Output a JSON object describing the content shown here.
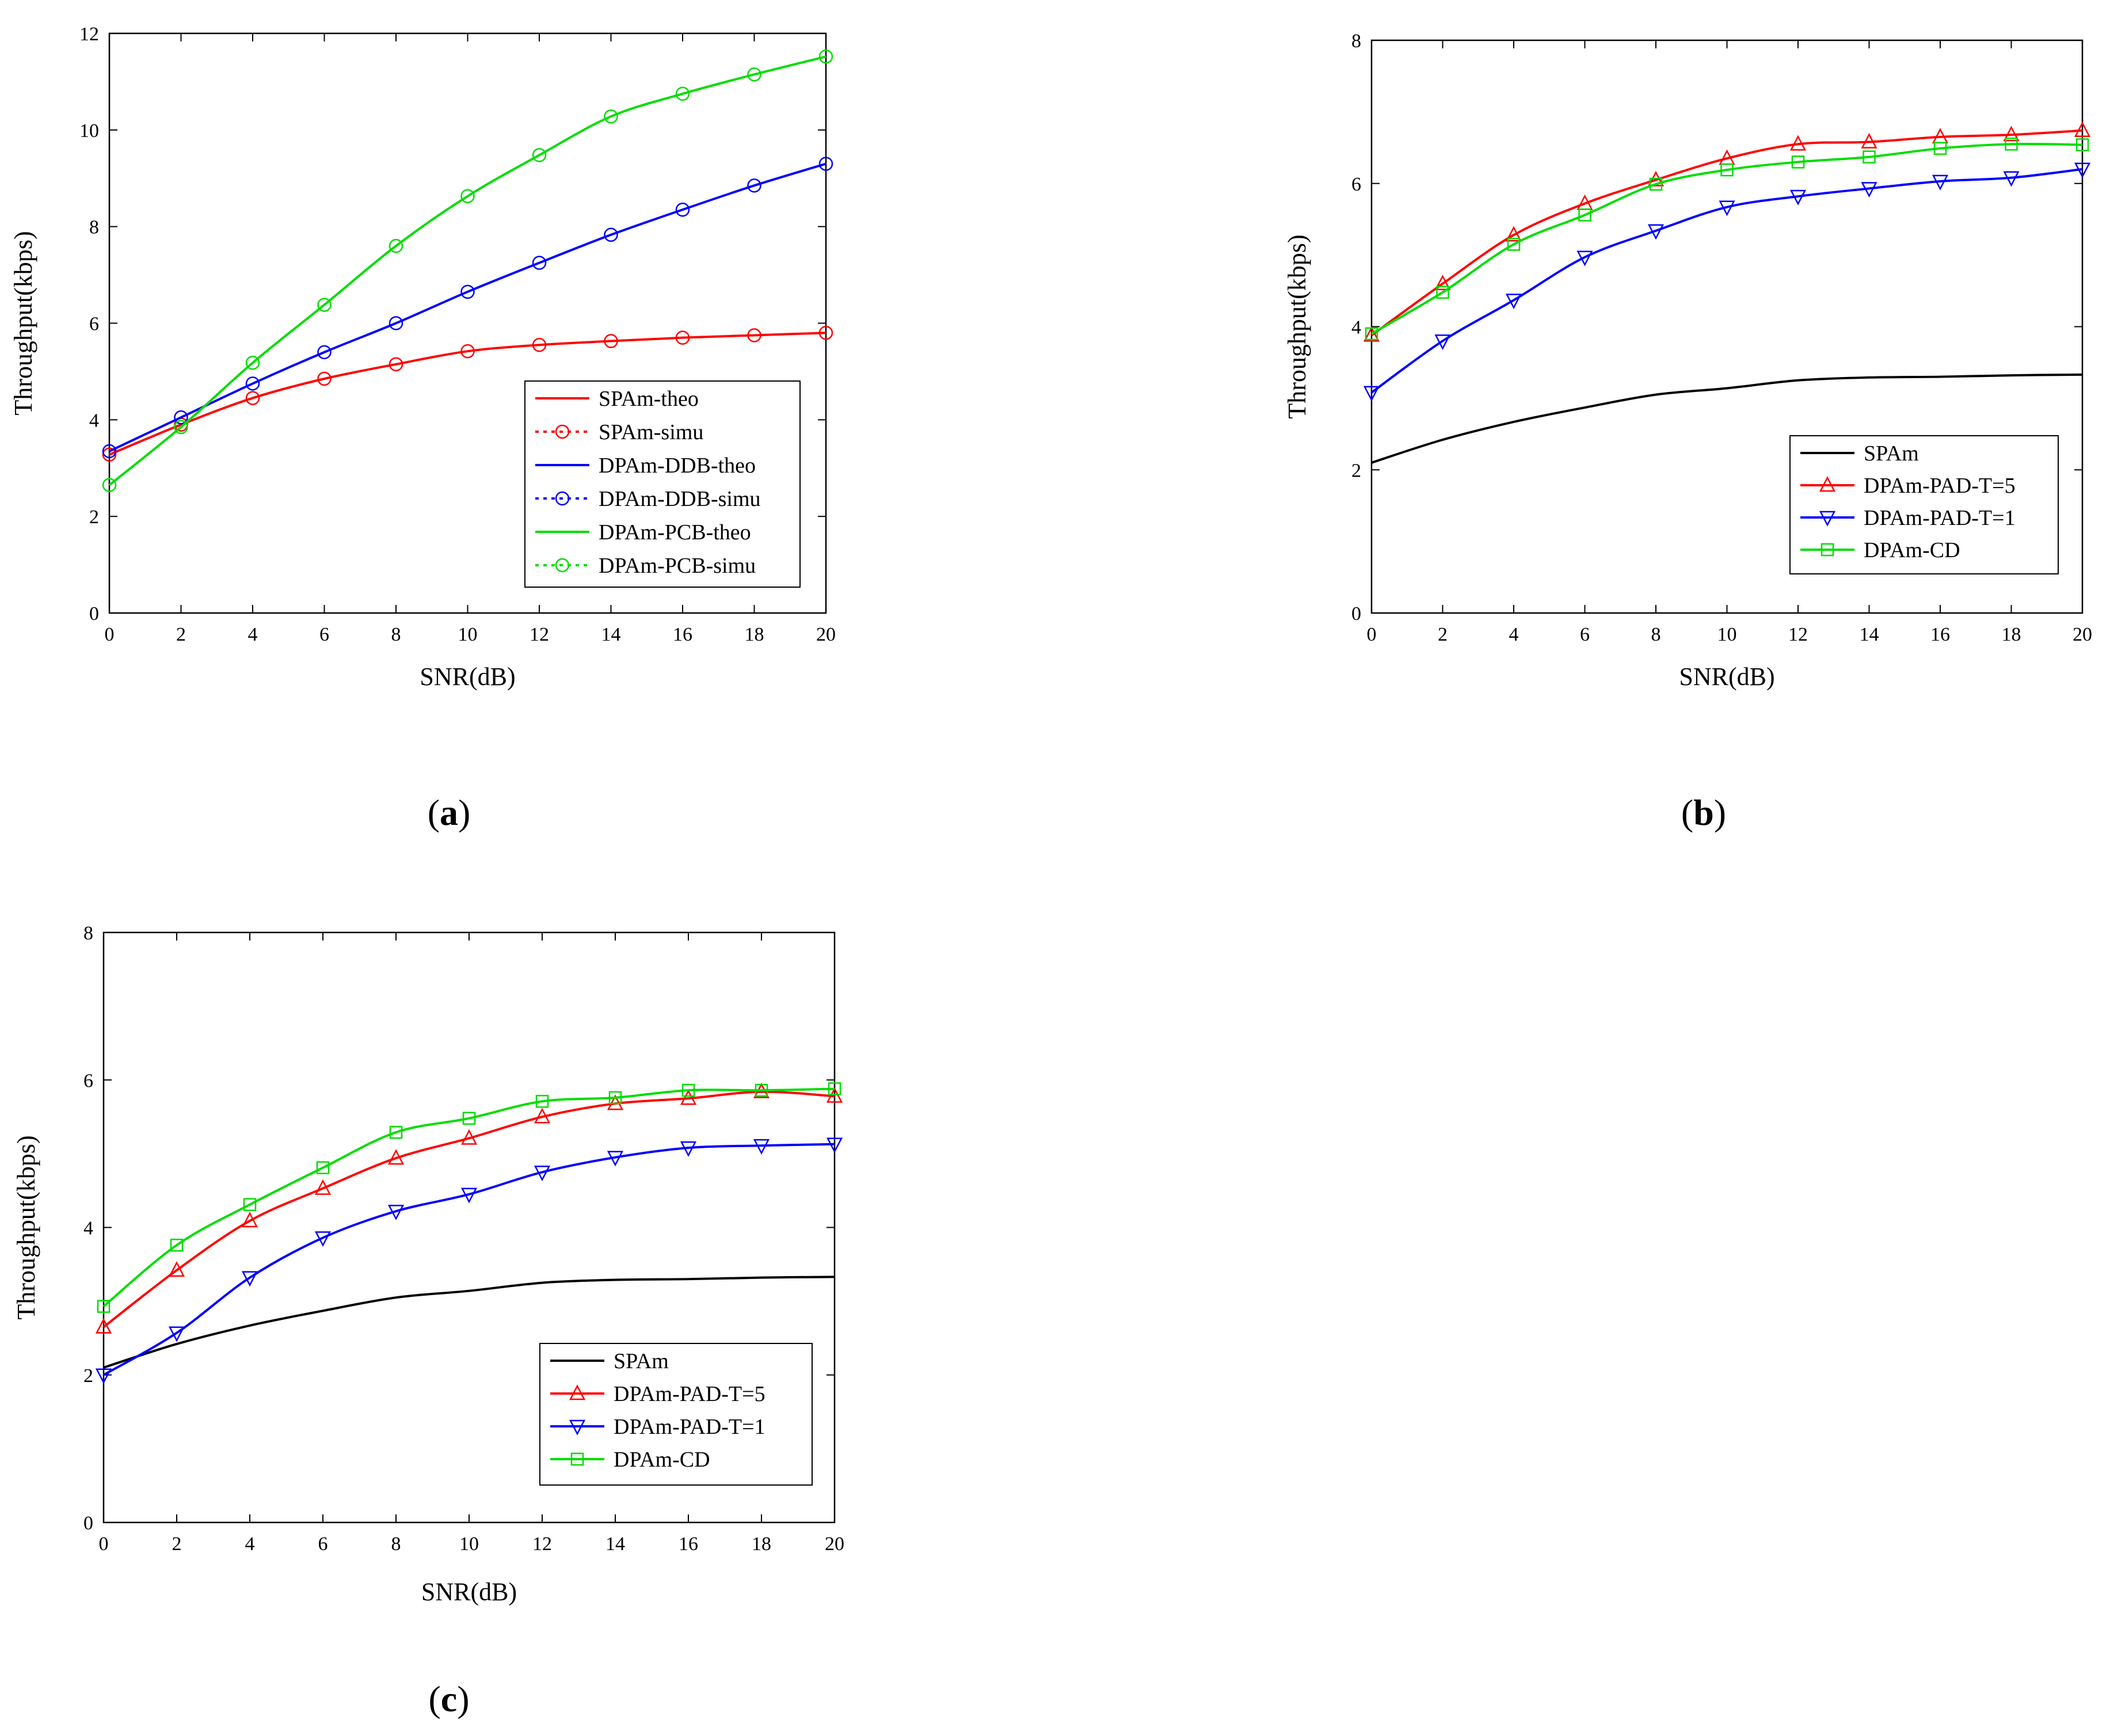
{
  "chart_data": [
    {
      "type": "line",
      "panel_label": "a",
      "xlabel": "SNR(dB)",
      "ylabel": "Throughput(kbps)",
      "xlim": [
        0,
        20
      ],
      "ylim": [
        0,
        12
      ],
      "xticks": [
        0,
        2,
        4,
        6,
        8,
        10,
        12,
        14,
        16,
        18,
        20
      ],
      "yticks": [
        0,
        2,
        4,
        6,
        8,
        10,
        12
      ],
      "legend_position": "bottom-right",
      "x": [
        0,
        2,
        4,
        6,
        8,
        10,
        12,
        14,
        16,
        18,
        20
      ],
      "series": [
        {
          "name": "SPAm-theo",
          "color": "#ff0000",
          "style": "solid",
          "marker": "none",
          "values": [
            3.28,
            3.9,
            4.45,
            4.85,
            5.15,
            5.42,
            5.55,
            5.63,
            5.7,
            5.75,
            5.8
          ]
        },
        {
          "name": "SPAm-simu",
          "color": "#ff0000",
          "style": "dotted",
          "marker": "circle",
          "values": [
            3.28,
            3.9,
            4.45,
            4.85,
            5.15,
            5.42,
            5.55,
            5.63,
            5.7,
            5.75,
            5.8
          ]
        },
        {
          "name": "DPAm-DDB-theo",
          "color": "#0000ff",
          "style": "solid",
          "marker": "none",
          "values": [
            3.35,
            4.05,
            4.75,
            5.4,
            6.0,
            6.65,
            7.25,
            7.83,
            8.35,
            8.85,
            9.3
          ]
        },
        {
          "name": "DPAm-DDB-simu",
          "color": "#0000ff",
          "style": "dotted",
          "marker": "circle",
          "values": [
            3.35,
            4.05,
            4.75,
            5.4,
            6.0,
            6.65,
            7.25,
            7.83,
            8.35,
            8.85,
            9.3
          ]
        },
        {
          "name": "DPAm-PCB-theo",
          "color": "#00dd00",
          "style": "solid",
          "marker": "none",
          "values": [
            2.65,
            3.85,
            5.18,
            6.38,
            7.6,
            8.63,
            9.48,
            10.28,
            10.75,
            11.15,
            11.52
          ]
        },
        {
          "name": "DPAm-PCB-simu",
          "color": "#00dd00",
          "style": "dotted",
          "marker": "circle",
          "values": [
            2.65,
            3.85,
            5.18,
            6.38,
            7.6,
            8.63,
            9.48,
            10.28,
            10.75,
            11.15,
            11.52
          ]
        }
      ]
    },
    {
      "type": "line",
      "panel_label": "b",
      "xlabel": "SNR(dB)",
      "ylabel": "Throughput(kbps)",
      "xlim": [
        0,
        20
      ],
      "ylim": [
        0,
        8
      ],
      "xticks": [
        0,
        2,
        4,
        6,
        8,
        10,
        12,
        14,
        16,
        18,
        20
      ],
      "yticks": [
        0,
        2,
        4,
        6,
        8
      ],
      "legend_position": "bottom-right",
      "x": [
        0,
        2,
        4,
        6,
        8,
        10,
        12,
        14,
        16,
        18,
        20
      ],
      "series": [
        {
          "name": "SPAm",
          "color": "#000000",
          "style": "solid",
          "marker": "none",
          "values": [
            2.1,
            2.42,
            2.67,
            2.87,
            3.05,
            3.14,
            3.25,
            3.29,
            3.3,
            3.32,
            3.33
          ]
        },
        {
          "name": "DPAm-PAD-T=5",
          "color": "#ff0000",
          "style": "solid",
          "marker": "triangle-up",
          "values": [
            3.88,
            4.6,
            5.28,
            5.72,
            6.05,
            6.35,
            6.55,
            6.58,
            6.65,
            6.68,
            6.74
          ]
        },
        {
          "name": "DPAm-PAD-T=1",
          "color": "#0000ff",
          "style": "solid",
          "marker": "triangle-down",
          "values": [
            3.08,
            3.8,
            4.37,
            4.97,
            5.34,
            5.67,
            5.82,
            5.93,
            6.03,
            6.08,
            6.2
          ]
        },
        {
          "name": "DPAm-CD",
          "color": "#00dd00",
          "style": "solid",
          "marker": "square",
          "values": [
            3.9,
            4.48,
            5.15,
            5.56,
            5.99,
            6.19,
            6.3,
            6.37,
            6.49,
            6.55,
            6.54
          ]
        }
      ]
    },
    {
      "type": "line",
      "panel_label": "c",
      "xlabel": "SNR(dB)",
      "ylabel": "Throughput(kbps)",
      "xlim": [
        0,
        20
      ],
      "ylim": [
        0,
        8
      ],
      "xticks": [
        0,
        2,
        4,
        6,
        8,
        10,
        12,
        14,
        16,
        18,
        20
      ],
      "yticks": [
        0,
        2,
        4,
        6,
        8
      ],
      "legend_position": "bottom-right",
      "x": [
        0,
        2,
        4,
        6,
        8,
        10,
        12,
        14,
        16,
        18,
        20
      ],
      "series": [
        {
          "name": "SPAm",
          "color": "#000000",
          "style": "solid",
          "marker": "none",
          "values": [
            2.1,
            2.42,
            2.67,
            2.87,
            3.05,
            3.14,
            3.25,
            3.29,
            3.3,
            3.32,
            3.33
          ]
        },
        {
          "name": "DPAm-PAD-T=5",
          "color": "#ff0000",
          "style": "solid",
          "marker": "triangle-up",
          "values": [
            2.65,
            3.42,
            4.09,
            4.53,
            4.94,
            5.21,
            5.5,
            5.68,
            5.75,
            5.84,
            5.78
          ]
        },
        {
          "name": "DPAm-PAD-T=1",
          "color": "#0000ff",
          "style": "solid",
          "marker": "triangle-down",
          "values": [
            2.0,
            2.57,
            3.32,
            3.86,
            4.22,
            4.45,
            4.75,
            4.95,
            5.08,
            5.11,
            5.13
          ]
        },
        {
          "name": "DPAm-CD",
          "color": "#00dd00",
          "style": "solid",
          "marker": "square",
          "values": [
            2.93,
            3.76,
            4.31,
            4.81,
            5.29,
            5.48,
            5.71,
            5.76,
            5.86,
            5.86,
            5.88
          ]
        }
      ]
    }
  ]
}
